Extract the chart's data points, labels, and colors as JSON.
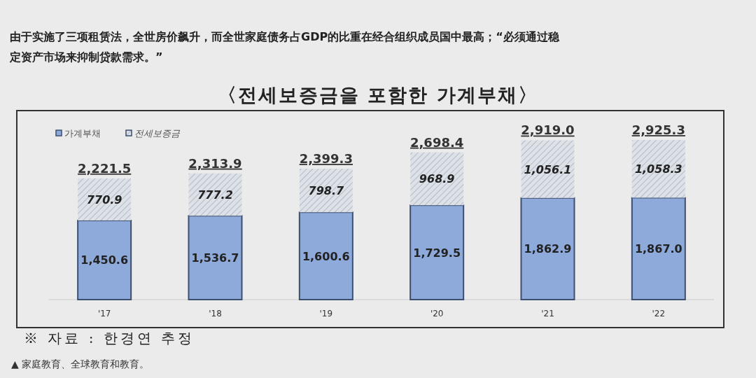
{
  "chart_data": {
    "type": "bar",
    "title": "〈전세보증금을 포함한 가계부채〉",
    "categories": [
      "'17",
      "'18",
      "'19",
      "'20",
      "'21",
      "'22"
    ],
    "series": [
      {
        "name": "가계부채",
        "color": "#8eaadb",
        "values": [
          1450.6,
          1536.7,
          1600.6,
          1729.5,
          1862.9,
          1867.0
        ],
        "value_labels": [
          "1,450.6",
          "1,536.7",
          "1,600.6",
          "1,729.5",
          "1,862.9",
          "1,867.0"
        ]
      },
      {
        "name": "전세보증금",
        "color": "#dde1e8",
        "values": [
          770.9,
          777.2,
          798.7,
          968.9,
          1056.1,
          1058.3
        ],
        "value_labels": [
          "770.9",
          "777.2",
          "798.7",
          "968.9",
          "1,056.1",
          "1,058.3"
        ]
      }
    ],
    "stacked": true,
    "totals": [
      "2,221.5",
      "2,313.9",
      "2,399.3",
      "2,698.4",
      "2,919.0",
      "2,925.3"
    ],
    "legend": "top left",
    "annotations": [
      "由于实施了三项租赁法，全世房价飙升，而全世家庭债务占GDP的比重在经合组织成员国中最高；“必须通过稳定资产市场来抑制贷款需求。”",
      "※ 자료 : 한경연 추정",
      "▲ 家庭教育、全球教育和教育。"
    ]
  }
}
